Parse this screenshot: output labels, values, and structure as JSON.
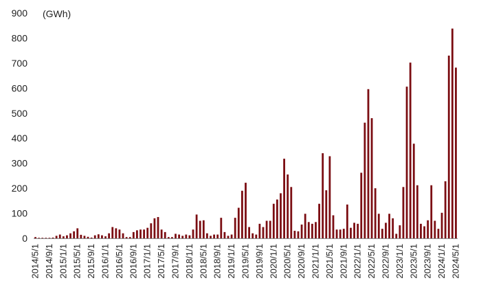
{
  "chart_data": {
    "type": "bar",
    "unit_label": "(GWh)",
    "ylim": [
      0,
      900
    ],
    "y_ticks": [
      0,
      100,
      200,
      300,
      400,
      500,
      600,
      700,
      800,
      900
    ],
    "grid": false,
    "bar_color": "#7b0d12",
    "start_month": "2014-05",
    "x_tick_labels": [
      "2014/5/1",
      "2014/9/1",
      "2015/1/1",
      "2015/5/1",
      "2015/9/1",
      "2016/1/1",
      "2016/5/1",
      "2016/9/1",
      "2017/1/1",
      "2017/5/1",
      "2017/9/1",
      "2018/1/1",
      "2018/5/1",
      "2018/9/1",
      "2019/1/1",
      "2019/5/1",
      "2019/9/1",
      "2020/1/1",
      "2020/5/1",
      "2020/9/1",
      "2021/1/1",
      "2021/5/1",
      "2021/9/1",
      "2022/1/1",
      "2022/5/1",
      "2022/9/1",
      "2023/1/1",
      "2023/5/1",
      "2023/9/1",
      "2024/1/1",
      "2024/5/1"
    ],
    "values": [
      5,
      2,
      2,
      2,
      2,
      3,
      10,
      15,
      8,
      12,
      20,
      28,
      40,
      14,
      10,
      6,
      3,
      12,
      16,
      12,
      8,
      20,
      45,
      40,
      35,
      20,
      5,
      5,
      25,
      32,
      35,
      35,
      42,
      60,
      80,
      85,
      35,
      25,
      5,
      5,
      18,
      15,
      10,
      15,
      12,
      35,
      95,
      70,
      72,
      20,
      10,
      15,
      15,
      82,
      25,
      10,
      15,
      82,
      122,
      190,
      222,
      45,
      20,
      15,
      58,
      45,
      70,
      70,
      138,
      155,
      180,
      318,
      255,
      205,
      30,
      28,
      55,
      98,
      65,
      58,
      65,
      138,
      340,
      192,
      328,
      92,
      35,
      35,
      38,
      135,
      42,
      62,
      58,
      262,
      462,
      596,
      480,
      200,
      98,
      38,
      62,
      98,
      80,
      18,
      52,
      205,
      606,
      702,
      378,
      212,
      58,
      48,
      72,
      212,
      70,
      38,
      102,
      228,
      730,
      838,
      682
    ]
  }
}
